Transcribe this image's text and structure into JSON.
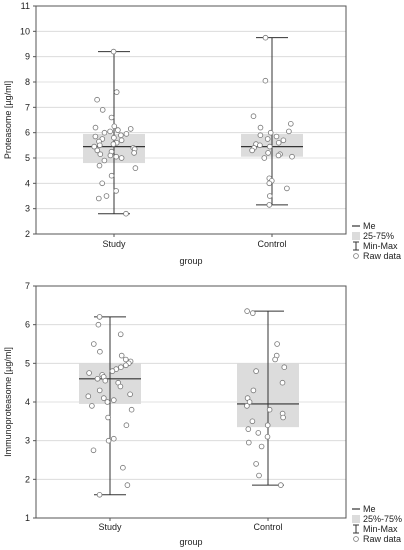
{
  "chart_data": [
    {
      "type": "box",
      "xlabel": "group",
      "ylabel": "Proteasome [µg/ml]",
      "ylim": [
        2,
        11
      ],
      "yticks": [
        2,
        3,
        4,
        5,
        6,
        7,
        8,
        9,
        10,
        11
      ],
      "grid": true,
      "categories": [
        "Study",
        "Control"
      ],
      "boxes": [
        {
          "category": "Study",
          "median": 5.45,
          "q1": 4.8,
          "q3": 5.95,
          "min": 2.8,
          "max": 9.2
        },
        {
          "category": "Control",
          "median": 5.45,
          "q1": 5.05,
          "q3": 5.95,
          "min": 3.15,
          "max": 9.75
        }
      ],
      "raw_data": {
        "Study": [
          9.2,
          7.6,
          7.3,
          6.9,
          6.6,
          6.25,
          6.2,
          6.15,
          6.1,
          6.05,
          6.0,
          5.95,
          5.9,
          5.85,
          5.8,
          5.75,
          5.7,
          5.65,
          5.6,
          5.55,
          5.5,
          5.45,
          5.4,
          5.35,
          5.3,
          5.25,
          5.2,
          5.15,
          5.1,
          5.05,
          5.0,
          4.9,
          4.7,
          4.6,
          4.3,
          4.0,
          3.7,
          3.5,
          3.4,
          2.8
        ],
        "Control": [
          9.75,
          8.05,
          6.65,
          6.35,
          6.2,
          6.05,
          6.0,
          5.9,
          5.85,
          5.75,
          5.7,
          5.6,
          5.55,
          5.5,
          5.45,
          5.4,
          5.3,
          5.2,
          5.15,
          5.1,
          5.05,
          5.0,
          4.2,
          4.1,
          4.0,
          3.8,
          3.5,
          3.15
        ]
      },
      "legend": {
        "placement": "right-bottom",
        "items": [
          {
            "label": "Me",
            "symbol": "line"
          },
          {
            "label": "25-75%",
            "symbol": "box"
          },
          {
            "label": "Min-Max",
            "symbol": "whisker"
          },
          {
            "label": "Raw data",
            "symbol": "circle"
          }
        ]
      }
    },
    {
      "type": "box",
      "xlabel": "group",
      "ylabel": "Immunoproteasome [µg/ml]",
      "ylim": [
        1,
        7
      ],
      "yticks": [
        1,
        2,
        3,
        4,
        5,
        6,
        7
      ],
      "grid": true,
      "categories": [
        "Study",
        "Control"
      ],
      "boxes": [
        {
          "category": "Study",
          "median": 4.6,
          "q1": 3.95,
          "q3": 5.0,
          "min": 1.6,
          "max": 6.2
        },
        {
          "category": "Control",
          "median": 3.95,
          "q1": 3.35,
          "q3": 5.0,
          "min": 1.85,
          "max": 6.35
        }
      ],
      "raw_data": {
        "Study": [
          6.2,
          6.0,
          5.75,
          5.5,
          5.3,
          5.2,
          5.1,
          5.05,
          5.0,
          4.95,
          4.9,
          4.85,
          4.8,
          4.75,
          4.7,
          4.65,
          4.6,
          4.55,
          4.5,
          4.4,
          4.3,
          4.2,
          4.15,
          4.1,
          4.05,
          4.0,
          3.9,
          3.8,
          3.6,
          3.4,
          3.05,
          3.0,
          2.75,
          2.3,
          1.85,
          1.6
        ],
        "Control": [
          6.35,
          6.3,
          5.5,
          5.2,
          5.1,
          4.9,
          4.8,
          4.5,
          4.3,
          4.1,
          4.0,
          3.9,
          3.8,
          3.7,
          3.6,
          3.5,
          3.4,
          3.3,
          3.2,
          3.1,
          2.95,
          2.85,
          2.4,
          2.1,
          1.85
        ]
      },
      "legend": {
        "placement": "right-bottom",
        "items": [
          {
            "label": "Me",
            "symbol": "line"
          },
          {
            "label": "25%-75%",
            "symbol": "box"
          },
          {
            "label": "Min-Max",
            "symbol": "whisker"
          },
          {
            "label": "Raw data",
            "symbol": "circle"
          }
        ]
      }
    }
  ]
}
